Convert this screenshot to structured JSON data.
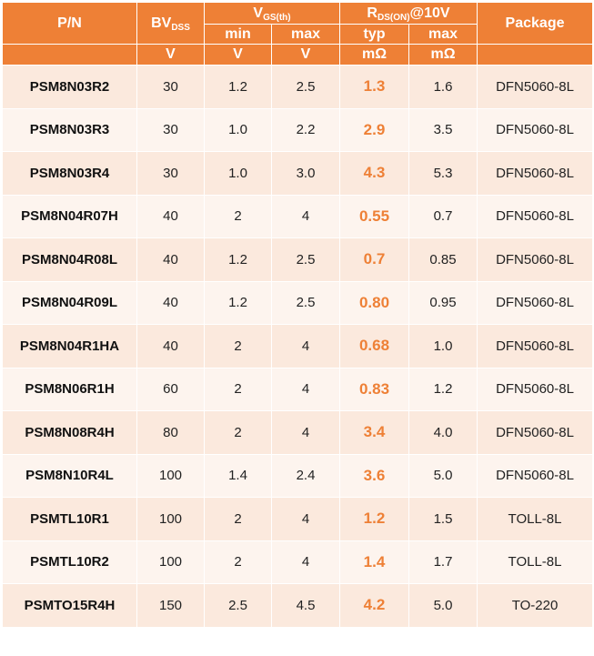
{
  "header": {
    "pn": "P/N",
    "bv_main": "BV",
    "bv_sub": "DSS",
    "vgs_main": "V",
    "vgs_sub": "GS(th)",
    "rds_main": "R",
    "rds_sub": "DS(ON)",
    "rds_suffix": "@10V",
    "package": "Package",
    "min": "min",
    "max": "max",
    "typ": "typ",
    "max2": "max",
    "unit_bv": "V",
    "unit_vmin": "V",
    "unit_vmax": "V",
    "unit_rtyp": "mΩ",
    "unit_rmax": "mΩ"
  },
  "rows": [
    {
      "pn": "PSM8N03R2",
      "bv": "30",
      "vmin": "1.2",
      "vmax": "2.5",
      "rtyp": "1.3",
      "rmax": "1.6",
      "pkg": "DFN5060-8L"
    },
    {
      "pn": "PSM8N03R3",
      "bv": "30",
      "vmin": "1.0",
      "vmax": "2.2",
      "rtyp": "2.9",
      "rmax": "3.5",
      "pkg": "DFN5060-8L"
    },
    {
      "pn": "PSM8N03R4",
      "bv": "30",
      "vmin": "1.0",
      "vmax": "3.0",
      "rtyp": "4.3",
      "rmax": "5.3",
      "pkg": "DFN5060-8L"
    },
    {
      "pn": "PSM8N04R07H",
      "bv": "40",
      "vmin": "2",
      "vmax": "4",
      "rtyp": "0.55",
      "rmax": "0.7",
      "pkg": "DFN5060-8L"
    },
    {
      "pn": "PSM8N04R08L",
      "bv": "40",
      "vmin": "1.2",
      "vmax": "2.5",
      "rtyp": "0.7",
      "rmax": "0.85",
      "pkg": "DFN5060-8L"
    },
    {
      "pn": "PSM8N04R09L",
      "bv": "40",
      "vmin": "1.2",
      "vmax": "2.5",
      "rtyp": "0.80",
      "rmax": "0.95",
      "pkg": "DFN5060-8L"
    },
    {
      "pn": "PSM8N04R1HA",
      "bv": "40",
      "vmin": "2",
      "vmax": "4",
      "rtyp": "0.68",
      "rmax": "1.0",
      "pkg": "DFN5060-8L"
    },
    {
      "pn": "PSM8N06R1H",
      "bv": "60",
      "vmin": "2",
      "vmax": "4",
      "rtyp": "0.83",
      "rmax": "1.2",
      "pkg": "DFN5060-8L"
    },
    {
      "pn": "PSM8N08R4H",
      "bv": "80",
      "vmin": "2",
      "vmax": "4",
      "rtyp": "3.4",
      "rmax": "4.0",
      "pkg": "DFN5060-8L"
    },
    {
      "pn": "PSM8N10R4L",
      "bv": "100",
      "vmin": "1.4",
      "vmax": "2.4",
      "rtyp": "3.6",
      "rmax": "5.0",
      "pkg": "DFN5060-8L"
    },
    {
      "pn": "PSMTL10R1",
      "bv": "100",
      "vmin": "2",
      "vmax": "4",
      "rtyp": "1.2",
      "rmax": "1.5",
      "pkg": "TOLL-8L"
    },
    {
      "pn": "PSMTL10R2",
      "bv": "100",
      "vmin": "2",
      "vmax": "4",
      "rtyp": "1.4",
      "rmax": "1.7",
      "pkg": "TOLL-8L"
    },
    {
      "pn": "PSMTO15R4H",
      "bv": "150",
      "vmin": "2.5",
      "vmax": "4.5",
      "rtyp": "4.2",
      "rmax": "5.0",
      "pkg": "TO-220"
    }
  ],
  "colors": {
    "header_bg": "#ee8036",
    "highlight_text": "#ee8036",
    "row_odd": "#fbe9dd",
    "row_even": "#fdf4ee"
  }
}
